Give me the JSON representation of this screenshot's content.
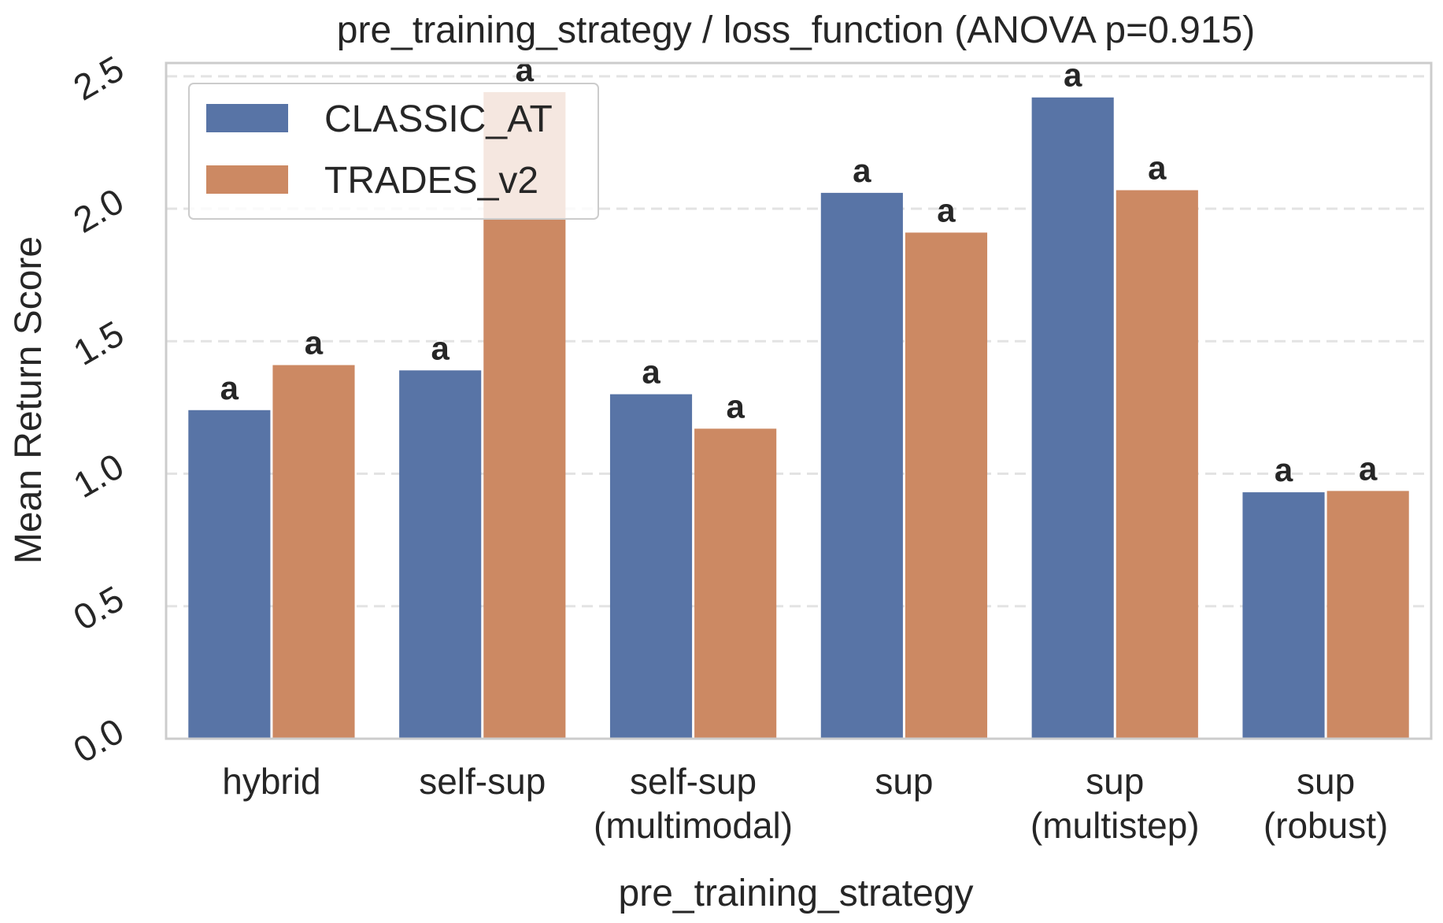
{
  "chart_data": {
    "type": "bar",
    "title": "pre_training_strategy / loss_function  (ANOVA p=0.915)",
    "xlabel": "pre_training_strategy",
    "ylabel": "Mean Return Score",
    "categories": [
      [
        "hybrid"
      ],
      [
        "self-sup"
      ],
      [
        "self-sup",
        "(multimodal)"
      ],
      [
        "sup"
      ],
      [
        "sup",
        "(multistep)"
      ],
      [
        "sup",
        "(robust)"
      ]
    ],
    "series": [
      {
        "name": "CLASSIC_AT",
        "color": "#5874a6",
        "values": [
          1.24,
          1.39,
          1.3,
          2.06,
          2.42,
          0.93
        ],
        "labels": [
          "a",
          "a",
          "a",
          "a",
          "a",
          "a"
        ]
      },
      {
        "name": "TRADES_v2",
        "color": "#cc8963",
        "values": [
          1.41,
          2.44,
          1.17,
          1.91,
          2.07,
          0.935
        ],
        "labels": [
          "a",
          "a",
          "a",
          "a",
          "a",
          "a"
        ]
      }
    ],
    "ylim": [
      0,
      2.55
    ],
    "yticks": [
      0.0,
      0.5,
      1.0,
      1.5,
      2.0,
      2.5
    ],
    "ytick_labels": [
      "0.0",
      "0.5",
      "1.0",
      "1.5",
      "2.0",
      "2.5"
    ],
    "grid": "y-dashed",
    "legend": "top-left"
  }
}
